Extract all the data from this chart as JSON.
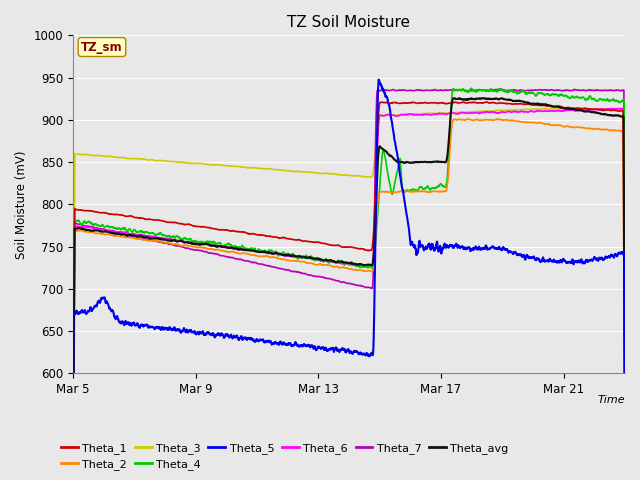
{
  "title": "TZ Soil Moisture",
  "ylabel": "Soil Moisture (mV)",
  "xlabel": "Time",
  "ylim": [
    600,
    1000
  ],
  "xlim": [
    0,
    18
  ],
  "xtick_positions": [
    0,
    4,
    8,
    12,
    16
  ],
  "xtick_labels": [
    "Mar 5",
    "Mar 9",
    "Mar 13",
    "Mar 17",
    "Mar 21"
  ],
  "ytick_positions": [
    600,
    650,
    700,
    750,
    800,
    850,
    900,
    950,
    1000
  ],
  "legend_label": "TZ_sm",
  "series_colors": {
    "Theta_1": "#cc0000",
    "Theta_2": "#ff8800",
    "Theta_3": "#cccc00",
    "Theta_4": "#00cc00",
    "Theta_5": "#0000ee",
    "Theta_6": "#ff00ff",
    "Theta_7": "#bb00bb",
    "Theta_avg": "#111111"
  },
  "plot_bg_color": "#e8e8e8",
  "fig_bg_color": "#e8e8e8"
}
